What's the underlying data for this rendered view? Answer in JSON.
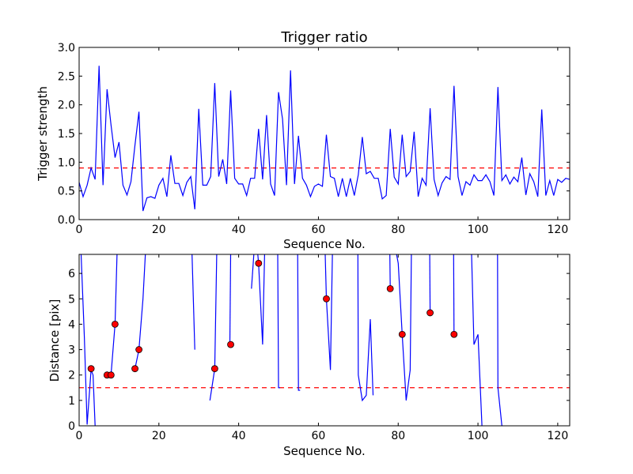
{
  "chart_data": [
    {
      "type": "line",
      "title": "Trigger ratio",
      "xlabel": "Sequence No.",
      "ylabel": "Trigger strength",
      "xlim": [
        0,
        123
      ],
      "ylim": [
        0,
        3.0
      ],
      "xticks": [
        0,
        20,
        40,
        60,
        80,
        100,
        120
      ],
      "yticks": [
        0.0,
        0.5,
        1.0,
        1.5,
        2.0,
        2.5,
        3.0
      ],
      "ytick_labels": [
        "0.0",
        "0.5",
        "1.0",
        "1.5",
        "2.0",
        "2.5",
        "3.0"
      ],
      "threshold": 0.9,
      "colors": {
        "series": "#0000ff",
        "threshold": "#ff0000"
      },
      "series": [
        {
          "x": [
            0,
            1,
            2,
            3,
            4,
            5,
            6,
            7,
            8,
            9,
            10,
            11,
            12,
            13,
            14,
            15,
            16,
            17,
            18,
            19,
            20,
            21,
            22,
            23,
            24,
            25,
            26,
            27,
            28,
            29,
            30,
            31,
            32,
            33,
            34,
            35,
            36,
            37,
            38,
            39,
            40,
            41,
            42,
            43,
            44,
            45,
            46,
            47,
            48,
            49,
            50,
            51,
            52,
            53,
            54,
            55,
            56,
            57,
            58,
            59,
            60,
            61,
            62,
            63,
            64,
            65,
            66,
            67,
            68,
            69,
            70,
            71,
            72,
            73,
            74,
            75,
            76,
            77,
            78,
            79,
            80,
            81,
            82,
            83,
            84,
            85,
            86,
            87,
            88,
            89,
            90,
            91,
            92,
            93,
            94,
            95,
            96,
            97,
            98,
            99,
            100,
            101,
            102,
            103,
            104,
            105,
            106,
            107,
            108,
            109,
            110,
            111,
            112,
            113,
            114,
            115,
            116,
            117,
            118,
            119,
            120,
            121,
            122,
            123
          ],
          "y": [
            0.65,
            0.4,
            0.6,
            0.9,
            0.7,
            2.68,
            0.6,
            2.27,
            1.65,
            1.08,
            1.35,
            0.6,
            0.43,
            0.66,
            1.3,
            1.88,
            0.15,
            0.38,
            0.4,
            0.37,
            0.6,
            0.72,
            0.4,
            1.12,
            0.63,
            0.63,
            0.42,
            0.65,
            0.75,
            0.18,
            1.93,
            0.6,
            0.6,
            0.75,
            2.38,
            0.75,
            1.05,
            0.62,
            2.25,
            0.72,
            0.62,
            0.62,
            0.42,
            0.72,
            0.72,
            1.58,
            0.7,
            1.82,
            0.62,
            0.42,
            2.22,
            1.75,
            0.6,
            2.6,
            0.62,
            1.46,
            0.72,
            0.6,
            0.4,
            0.58,
            0.62,
            0.58,
            1.48,
            0.75,
            0.72,
            0.4,
            0.72,
            0.4,
            0.72,
            0.42,
            0.78,
            1.44,
            0.8,
            0.84,
            0.72,
            0.72,
            0.36,
            0.42,
            1.58,
            0.74,
            0.62,
            1.48,
            0.75,
            0.84,
            1.53,
            0.4,
            0.72,
            0.6,
            1.94,
            0.7,
            0.42,
            0.64,
            0.75,
            0.7,
            2.33,
            0.75,
            0.42,
            0.66,
            0.6,
            0.78,
            0.68,
            0.68,
            0.78,
            0.66,
            0.42,
            2.31,
            0.68,
            0.78,
            0.62,
            0.74,
            0.66,
            1.08,
            0.43,
            0.8,
            0.66,
            0.4,
            1.92,
            0.42,
            0.68,
            0.42,
            0.7,
            0.65,
            0.72,
            0.7
          ]
        }
      ]
    },
    {
      "type": "line",
      "title": "",
      "xlabel": "Sequence No.",
      "ylabel": "Distance [pix]",
      "xlim": [
        0,
        123
      ],
      "ylim": [
        0,
        6.75
      ],
      "xticks": [
        0,
        20,
        40,
        60,
        80,
        100,
        120
      ],
      "yticks": [
        0,
        1,
        2,
        3,
        4,
        5,
        6
      ],
      "ytick_labels": [
        "0",
        "1",
        "2",
        "3",
        "4",
        "5",
        "6"
      ],
      "threshold": 1.5,
      "colors": {
        "series": "#0000ff",
        "threshold": "#ff0000",
        "markers": "#ff0000"
      },
      "segments": [
        {
          "x": [
            0.5,
            1.3,
            2.0,
            3.0,
            3.5,
            4.0
          ],
          "y": [
            6.75,
            3.5,
            0.05,
            2.2,
            2.0,
            0.0
          ]
        },
        {
          "x": [
            7.0,
            8.0,
            9.0,
            9.5
          ],
          "y": [
            2.0,
            2.0,
            4.0,
            6.75
          ]
        },
        {
          "x": [
            14.0,
            15.0,
            16.0,
            16.6
          ],
          "y": [
            2.25,
            3.0,
            5.0,
            6.75
          ]
        },
        {
          "x": [
            28.3,
            29.0
          ],
          "y": [
            6.75,
            3.0
          ]
        },
        {
          "x": [
            32.8,
            34.0,
            34.5
          ],
          "y": [
            1.0,
            2.25,
            6.75
          ]
        },
        {
          "x": [
            37.8,
            38.0
          ],
          "y": [
            3.2,
            6.75
          ]
        },
        {
          "x": [
            43.2,
            43.8
          ],
          "y": [
            5.4,
            6.75
          ]
        },
        {
          "x": [
            44.8,
            45.0,
            46.0,
            46.5
          ],
          "y": [
            6.75,
            6.4,
            3.2,
            6.75
          ]
        },
        {
          "x": [
            49.8,
            50.0,
            50.4
          ],
          "y": [
            6.75,
            1.5,
            1.5
          ]
        },
        {
          "x": [
            54.8,
            55.0,
            55.4
          ],
          "y": [
            6.75,
            1.4,
            1.4
          ]
        },
        {
          "x": [
            61.7,
            62.0,
            63.0,
            63.5
          ],
          "y": [
            6.75,
            5.0,
            2.2,
            6.75
          ]
        },
        {
          "x": [
            69.9,
            70.0,
            71.0,
            72.0,
            73.0,
            73.7
          ],
          "y": [
            6.75,
            2.0,
            1.0,
            1.2,
            4.2,
            1.2
          ]
        },
        {
          "x": [
            77.9,
            78.0
          ],
          "y": [
            6.75,
            5.4
          ]
        },
        {
          "x": [
            79.6,
            80.0,
            81.0,
            82.0,
            83.0,
            83.3
          ],
          "y": [
            6.75,
            6.4,
            3.6,
            1.0,
            2.2,
            6.75
          ]
        },
        {
          "x": [
            87.9,
            88.0
          ],
          "y": [
            6.75,
            4.45
          ]
        },
        {
          "x": [
            93.9,
            94.0
          ],
          "y": [
            6.75,
            3.6
          ]
        },
        {
          "x": [
            98.4,
            99.0,
            100.0,
            101.0,
            101.1
          ],
          "y": [
            6.75,
            3.2,
            3.6,
            0.0,
            0.0
          ]
        },
        {
          "x": [
            104.9,
            105.0,
            106.0,
            106.2
          ],
          "y": [
            6.75,
            1.5,
            0.0,
            0.0
          ]
        }
      ],
      "markers": {
        "x": [
          3,
          7,
          8,
          9,
          14,
          15,
          34,
          38,
          45,
          62,
          78,
          81,
          88,
          94
        ],
        "y": [
          2.25,
          2.0,
          2.0,
          4.0,
          2.25,
          3.0,
          2.25,
          3.2,
          6.4,
          5.0,
          5.4,
          3.6,
          4.45,
          3.6
        ]
      }
    }
  ]
}
